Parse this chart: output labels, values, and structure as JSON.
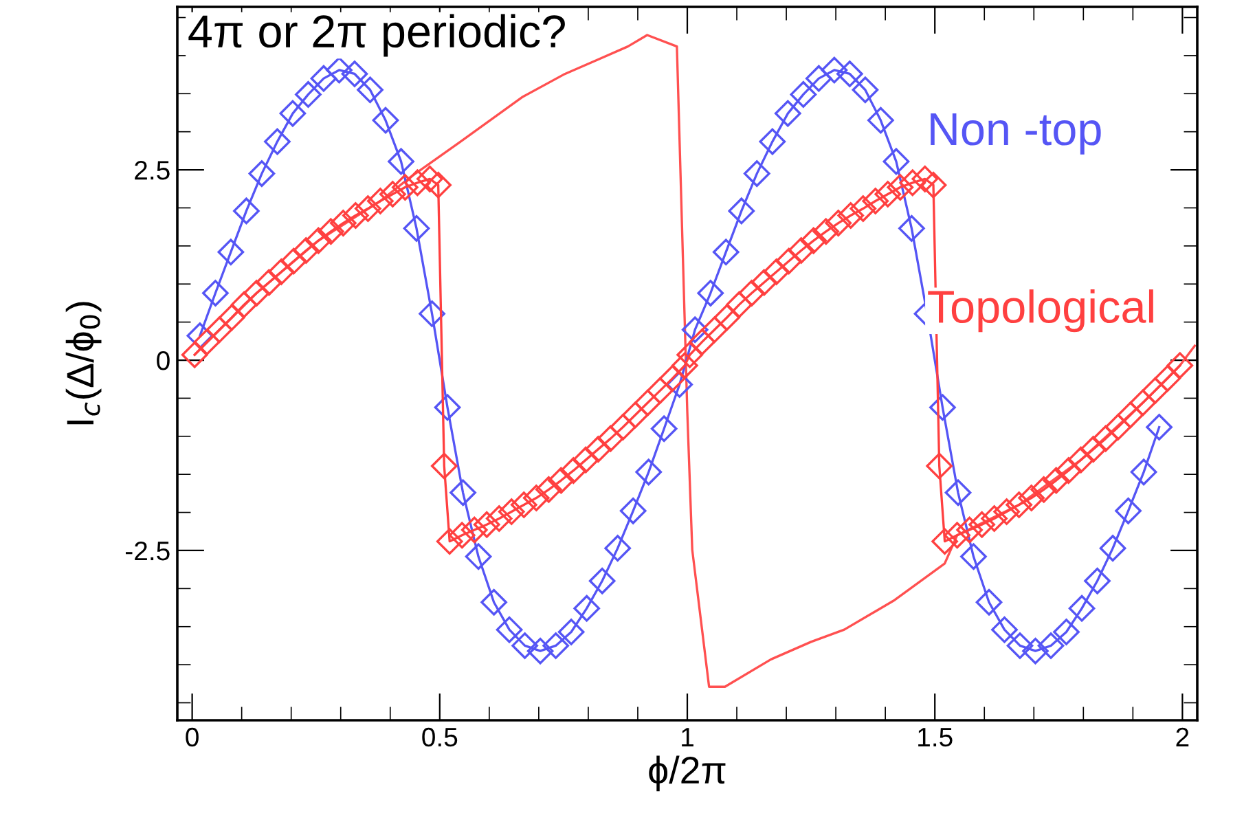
{
  "chart_data": {
    "type": "line",
    "annotations": [
      "4π or 2π periodic?"
    ],
    "xlabel": "ϕ/2π",
    "ylabel": "I$_{c}$(Δ/ϕ$_{0}$)",
    "xlim": [
      -0.03,
      2.03
    ],
    "ylim": [
      -4.73,
      4.64
    ],
    "xticks": [
      0,
      {
        "value": 0.1,
        "label": null
      },
      {
        "value": 0.2,
        "label": null
      },
      {
        "value": 0.3,
        "label": null
      },
      {
        "value": 0.4,
        "label": null
      },
      {
        "value": 0.5,
        "label": "0.5"
      },
      {
        "value": 0.6,
        "label": null
      },
      {
        "value": 0.7,
        "label": null
      },
      {
        "value": 0.8,
        "label": null
      },
      {
        "value": 0.9,
        "label": null
      },
      1,
      {
        "value": 1.1,
        "label": null
      },
      {
        "value": 1.2,
        "label": null
      },
      {
        "value": 1.3,
        "label": null
      },
      {
        "value": 1.4,
        "label": null
      },
      {
        "value": 1.5,
        "label": "1.5"
      },
      {
        "value": 1.6,
        "label": null
      },
      {
        "value": 1.7,
        "label": null
      },
      {
        "value": 1.8,
        "label": null
      },
      {
        "value": 1.9,
        "label": null
      },
      2
    ],
    "yticks": [
      {
        "value": -4.5,
        "label": null
      },
      {
        "value": -4,
        "label": null
      },
      {
        "value": -3.5,
        "label": null
      },
      {
        "value": -3,
        "label": null
      },
      {
        "value": -2.5,
        "label": "-2.5"
      },
      {
        "value": -2,
        "label": null
      },
      {
        "value": -1.5,
        "label": null
      },
      {
        "value": -1,
        "label": null
      },
      {
        "value": -0.5,
        "label": null
      },
      0,
      {
        "value": 0.5,
        "label": null
      },
      {
        "value": 1,
        "label": null
      },
      {
        "value": 1.5,
        "label": null
      },
      {
        "value": 2,
        "label": null
      },
      {
        "value": 2.5,
        "label": "2.5"
      },
      {
        "value": 3,
        "label": null
      },
      {
        "value": 3.5,
        "label": null
      },
      {
        "value": 4,
        "label": null
      },
      {
        "value": 4.5,
        "label": null
      }
    ],
    "grid": false,
    "legend": false,
    "series": [
      {
        "color": "#ff5050",
        "marker": "none",
        "x": [
          0.005,
          0.13,
          0.255,
          0.38,
          0.44,
          0.54,
          0.668,
          0.75,
          0.817,
          0.88,
          0.919,
          0.979,
          1.0,
          1.01,
          1.044,
          1.076,
          1.169,
          1.25,
          1.317,
          1.419,
          1.52,
          1.545,
          1.67,
          1.795,
          1.92,
          1.995,
          2.025
        ],
        "values": [
          0.07,
          0.88,
          1.57,
          2.09,
          2.4,
          2.86,
          3.46,
          3.75,
          3.94,
          4.12,
          4.27,
          4.12,
          -0.68,
          -2.49,
          -4.29,
          -4.29,
          -3.93,
          -3.7,
          -3.54,
          -3.15,
          -2.67,
          -2.3,
          -1.9,
          -1.31,
          -0.56,
          -0.07,
          0.19
        ]
      },
      {
        "name": "Non -top",
        "color": "#5555f5",
        "marker": "diamond",
        "x": [
          0.0156,
          0.0469,
          0.0781,
          0.1094,
          0.1406,
          0.1719,
          0.2031,
          0.2344,
          0.2656,
          0.2969,
          0.3281,
          0.3594,
          0.3906,
          0.4219,
          0.4531,
          0.4844,
          0.5156,
          0.5469,
          0.5781,
          0.6094,
          0.6406,
          0.6719,
          0.7031,
          0.7344,
          0.7656,
          0.7969,
          0.8281,
          0.8594,
          0.8906,
          0.9219,
          0.9531,
          0.9844,
          1.0156,
          1.0469,
          1.0781,
          1.1094,
          1.1406,
          1.1719,
          1.2031,
          1.2344,
          1.2656,
          1.2969,
          1.3281,
          1.3594,
          1.3906,
          1.4219,
          1.4531,
          1.4844,
          1.5156,
          1.5469,
          1.5781,
          1.6094,
          1.6406,
          1.6719,
          1.7031,
          1.7344,
          1.7656,
          1.7969,
          1.8281,
          1.8594,
          1.8906,
          1.9219,
          1.9531
        ],
        "values": [
          0.32,
          0.88,
          1.42,
          1.96,
          2.45,
          2.87,
          3.24,
          3.49,
          3.7,
          3.81,
          3.76,
          3.55,
          3.15,
          2.61,
          1.73,
          0.61,
          -0.62,
          -1.74,
          -2.58,
          -3.18,
          -3.54,
          -3.75,
          -3.82,
          -3.75,
          -3.57,
          -3.26,
          -2.9,
          -2.47,
          -1.98,
          -1.47,
          -0.9,
          -0.32,
          0.4,
          0.88,
          1.42,
          1.96,
          2.45,
          2.87,
          3.24,
          3.49,
          3.7,
          3.81,
          3.76,
          3.55,
          3.15,
          2.61,
          1.73,
          0.61,
          -0.62,
          -1.74,
          -2.58,
          -3.18,
          -3.54,
          -3.75,
          -3.82,
          -3.75,
          -3.57,
          -3.26,
          -2.9,
          -2.47,
          -1.98,
          -1.47,
          -0.88
        ]
      },
      {
        "name": "Topological",
        "color": "#ff4040",
        "marker": "diamond",
        "x": [
          0.005,
          0.03,
          0.055,
          0.08,
          0.105,
          0.13,
          0.155,
          0.18,
          0.205,
          0.23,
          0.255,
          0.28,
          0.305,
          0.33,
          0.355,
          0.38,
          0.405,
          0.43,
          0.455,
          0.48,
          0.497,
          0.509,
          0.52,
          0.545,
          0.57,
          0.595,
          0.62,
          0.645,
          0.67,
          0.695,
          0.72,
          0.745,
          0.77,
          0.795,
          0.82,
          0.845,
          0.87,
          0.895,
          0.92,
          0.945,
          0.97,
          0.995,
          1.005,
          1.03,
          1.055,
          1.08,
          1.105,
          1.13,
          1.155,
          1.18,
          1.205,
          1.23,
          1.255,
          1.28,
          1.305,
          1.33,
          1.355,
          1.38,
          1.405,
          1.43,
          1.455,
          1.48,
          1.497,
          1.509,
          1.52,
          1.545,
          1.57,
          1.595,
          1.62,
          1.645,
          1.67,
          1.695,
          1.72,
          1.745,
          1.77,
          1.795,
          1.82,
          1.845,
          1.87,
          1.895,
          1.92,
          1.945,
          1.97,
          1.995
        ],
        "values": [
          0.07,
          0.24,
          0.4,
          0.56,
          0.73,
          0.88,
          1.02,
          1.16,
          1.3,
          1.44,
          1.57,
          1.69,
          1.8,
          1.9,
          1.99,
          2.09,
          2.18,
          2.27,
          2.33,
          2.38,
          2.3,
          -1.39,
          -2.38,
          -2.3,
          -2.23,
          -2.16,
          -2.08,
          -1.99,
          -1.9,
          -1.81,
          -1.7,
          -1.58,
          -1.45,
          -1.31,
          -1.17,
          -1.03,
          -0.88,
          -0.72,
          -0.56,
          -0.4,
          -0.24,
          -0.07,
          0.07,
          0.24,
          0.4,
          0.56,
          0.73,
          0.88,
          1.02,
          1.16,
          1.3,
          1.44,
          1.57,
          1.69,
          1.8,
          1.9,
          1.99,
          2.09,
          2.18,
          2.27,
          2.33,
          2.38,
          2.3,
          -1.39,
          -2.38,
          -2.3,
          -2.23,
          -2.16,
          -2.08,
          -1.99,
          -1.9,
          -1.81,
          -1.7,
          -1.58,
          -1.45,
          -1.31,
          -1.17,
          -1.03,
          -0.88,
          -0.72,
          -0.56,
          -0.4,
          -0.24,
          -0.07
        ]
      }
    ]
  }
}
